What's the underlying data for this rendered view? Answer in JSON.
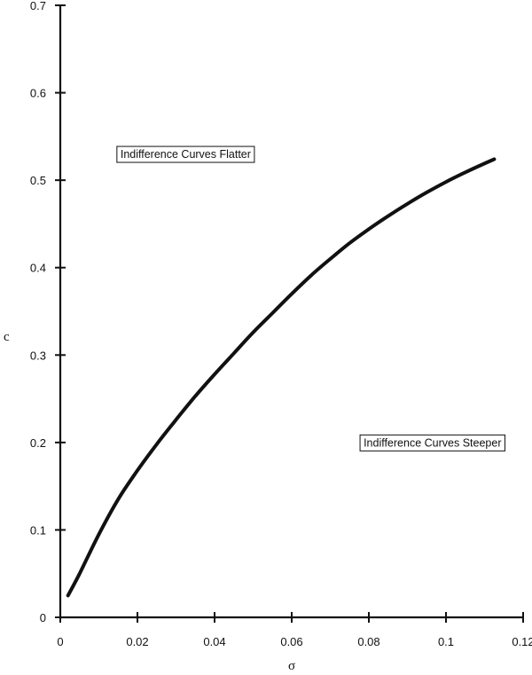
{
  "chart_data": {
    "type": "line",
    "title": "",
    "xlabel": "σ",
    "ylabel": "c",
    "xlim": [
      0,
      0.12
    ],
    "ylim": [
      0,
      0.7
    ],
    "xticks": [
      0,
      0.02,
      0.04,
      0.06,
      0.08,
      0.1,
      0.12
    ],
    "xtick_labels": [
      "0",
      "0.02",
      "0.04",
      "0.06",
      "0.08",
      "0.1",
      "0.12"
    ],
    "yticks": [
      0,
      0.1,
      0.2,
      0.3,
      0.4,
      0.5,
      0.6,
      0.7
    ],
    "ytick_labels": [
      "0",
      "0.1",
      "0.2",
      "0.3",
      "0.4",
      "0.5",
      "0.6",
      "0.7"
    ],
    "grid": false,
    "series": [
      {
        "x": [
          0.002,
          0.005,
          0.01,
          0.015,
          0.02,
          0.025,
          0.03,
          0.035,
          0.04,
          0.045,
          0.05,
          0.055,
          0.06,
          0.065,
          0.07,
          0.075,
          0.08,
          0.085,
          0.09,
          0.095,
          0.1,
          0.105,
          0.1125
        ],
        "y": [
          0.025,
          0.05,
          0.095,
          0.135,
          0.168,
          0.198,
          0.226,
          0.253,
          0.278,
          0.302,
          0.326,
          0.348,
          0.37,
          0.391,
          0.41,
          0.428,
          0.444,
          0.459,
          0.473,
          0.486,
          0.498,
          0.509,
          0.524
        ]
      }
    ],
    "annotations": [
      {
        "text": "Indifference Curves Flatter",
        "x": 0.0325,
        "y": 0.53
      },
      {
        "text": "Indifference Curves Steeper",
        "x": 0.0965,
        "y": 0.2
      }
    ]
  }
}
